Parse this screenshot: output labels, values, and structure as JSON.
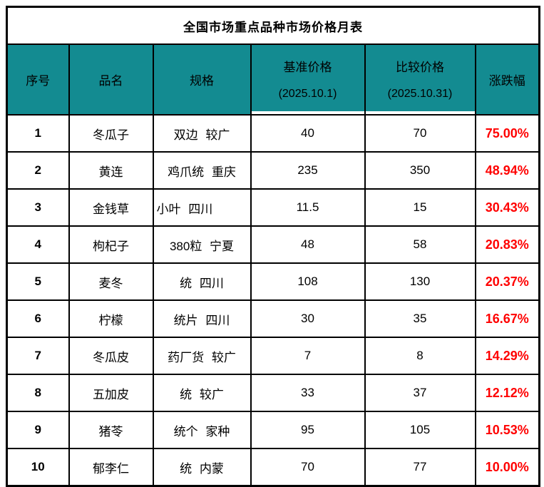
{
  "chart_data": {
    "type": "table",
    "title": "全国市场重点品种市场价格月表",
    "header": {
      "no": "序号",
      "name": "品名",
      "spec": "规格",
      "base_label": "基准价格",
      "base_date": "(2025.10.1)",
      "cmp_label": "比较价格",
      "cmp_date": "(2025.10.31)",
      "pct": "涨跌幅"
    },
    "rows": [
      {
        "no": "1",
        "name": "冬瓜子",
        "spec": "双边 较广",
        "base": "40",
        "cmp": "70",
        "pct": "75.00%"
      },
      {
        "no": "2",
        "name": "黄连",
        "spec": "鸡爪统 重庆",
        "base": "235",
        "cmp": "350",
        "pct": "48.94%"
      },
      {
        "no": "3",
        "name": "金钱草",
        "spec": "小叶 四川",
        "base": "11.5",
        "cmp": "15",
        "pct": "30.43%"
      },
      {
        "no": "4",
        "name": "枸杞子",
        "spec": "380粒 宁夏",
        "base": "48",
        "cmp": "58",
        "pct": "20.83%"
      },
      {
        "no": "5",
        "name": "麦冬",
        "spec": "统 四川",
        "base": "108",
        "cmp": "130",
        "pct": "20.37%"
      },
      {
        "no": "6",
        "name": "柠檬",
        "spec": "统片 四川",
        "base": "30",
        "cmp": "35",
        "pct": "16.67%"
      },
      {
        "no": "7",
        "name": "冬瓜皮",
        "spec": "药厂货 较广",
        "base": "7",
        "cmp": "8",
        "pct": "14.29%"
      },
      {
        "no": "8",
        "name": "五加皮",
        "spec": "统 较广",
        "base": "33",
        "cmp": "37",
        "pct": "12.12%"
      },
      {
        "no": "9",
        "name": "猪苓",
        "spec": "统个 家种",
        "base": "95",
        "cmp": "105",
        "pct": "10.53%"
      },
      {
        "no": "10",
        "name": "郁李仁",
        "spec": "统 内蒙",
        "base": "70",
        "cmp": "77",
        "pct": "10.00%"
      }
    ]
  },
  "colors": {
    "header_bg": "#138B91",
    "border": "#000000",
    "pct_text": "#FF0000",
    "body_text": "#000000",
    "cell_bg": "#FFFFFF"
  }
}
